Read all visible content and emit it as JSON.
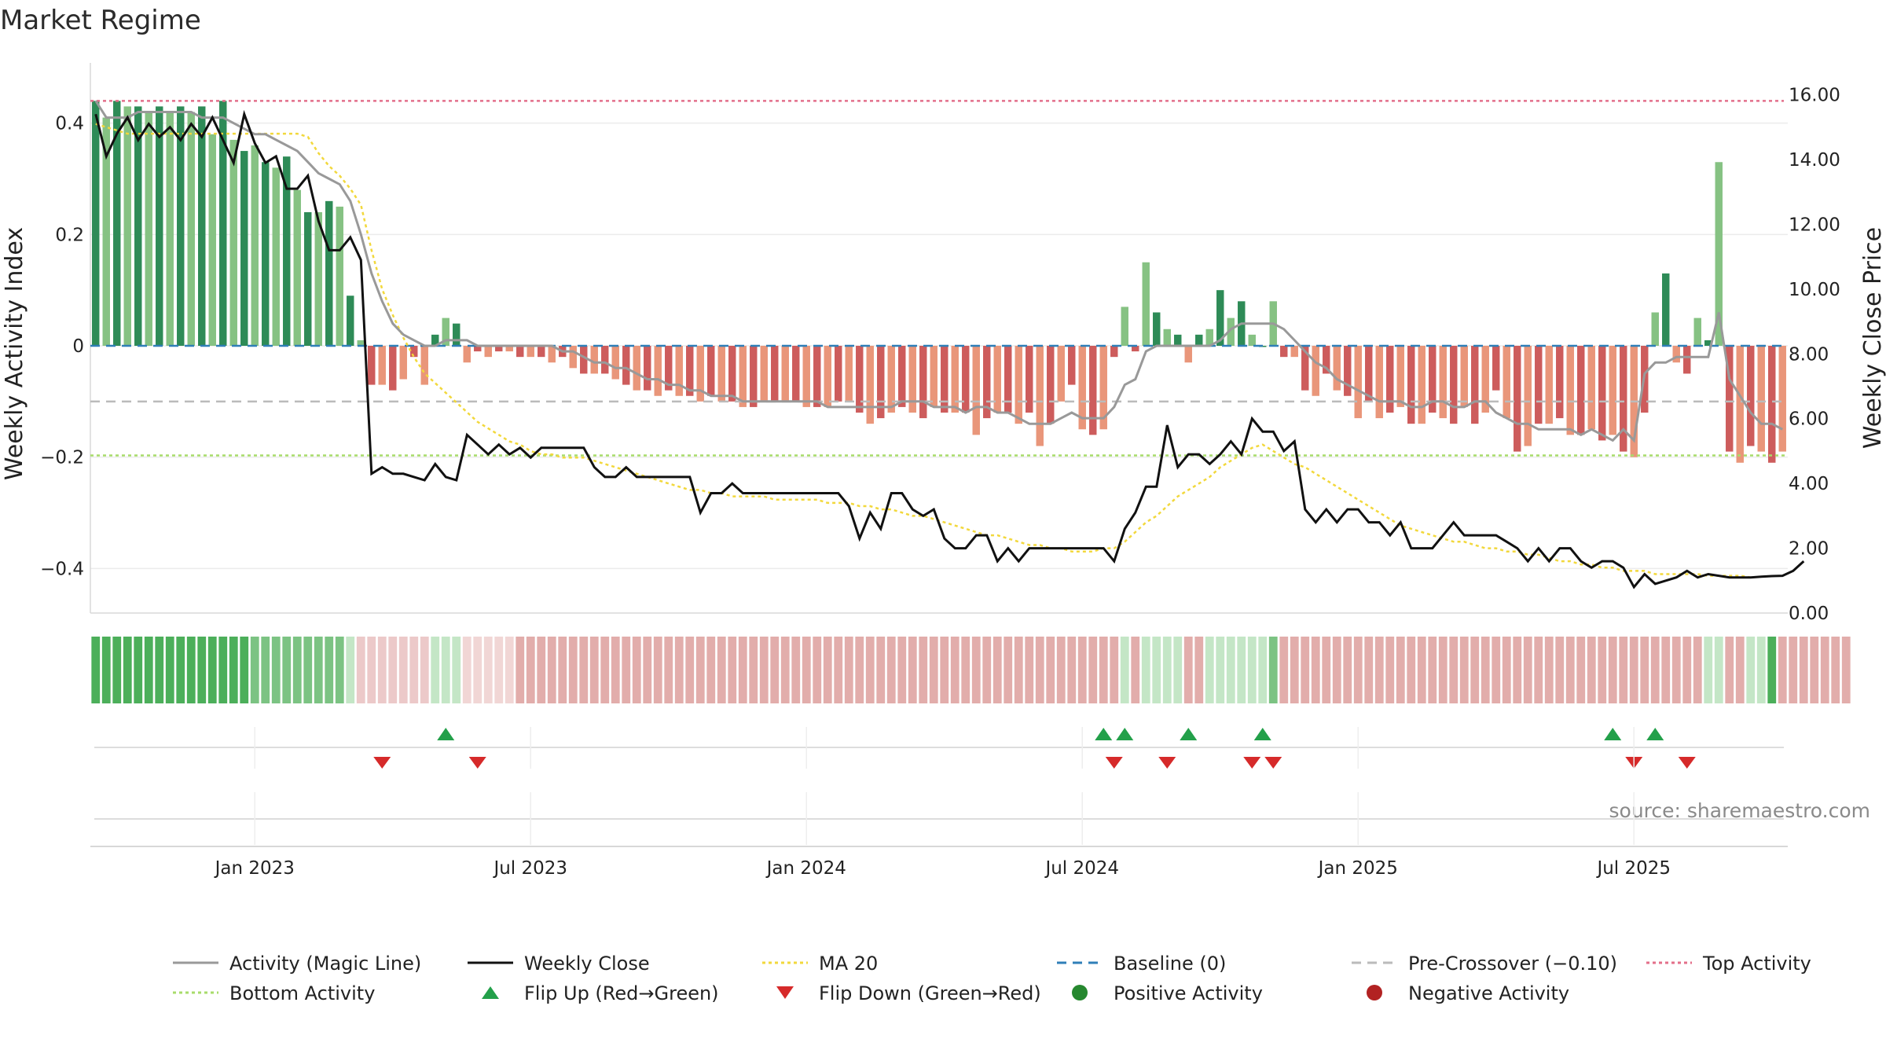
{
  "chart_data": {
    "type": "bar",
    "title": "Market Regime",
    "source": "source: sharemaestro.com",
    "left_axis": {
      "label": "Weekly Activity Index",
      "ylim": [
        -0.48,
        0.48
      ],
      "ticks": [
        -0.4,
        -0.2,
        0,
        0.2,
        0.4
      ],
      "tick_labels": [
        "−0.4",
        "−0.2",
        "0",
        "0.2",
        "0.4"
      ]
    },
    "right_axis": {
      "label": "Weekly Close Price",
      "ylim": [
        0,
        16.5
      ],
      "ticks": [
        0,
        2,
        4,
        6,
        8,
        10,
        12,
        14,
        16
      ],
      "tick_labels": [
        "0.00",
        "2.00",
        "4.00",
        "6.00",
        "8.00",
        "10.00",
        "12.00",
        "14.00",
        "16.00"
      ]
    },
    "x_axis": {
      "start_week": 0,
      "end_week": 156,
      "ticks": [
        {
          "label": "Jan 2023",
          "week": 15
        },
        {
          "label": "Jul 2023",
          "week": 41
        },
        {
          "label": "Jan 2024",
          "week": 67
        },
        {
          "label": "Jul 2024",
          "week": 93
        },
        {
          "label": "Jan 2025",
          "week": 119
        },
        {
          "label": "Jul 2025",
          "week": 145
        }
      ]
    },
    "reference_lines": {
      "top_activity": 0.44,
      "bottom_activity": -0.197,
      "baseline": 0,
      "pre_crossover": -0.1
    },
    "activity_bars": [
      0.44,
      0.41,
      0.44,
      0.43,
      0.43,
      0.42,
      0.43,
      0.42,
      0.43,
      0.42,
      0.43,
      0.38,
      0.44,
      0.37,
      0.35,
      0.36,
      0.33,
      0.32,
      0.34,
      0.28,
      0.24,
      0.24,
      0.26,
      0.25,
      0.09,
      0.01,
      -0.07,
      -0.07,
      -0.08,
      -0.06,
      -0.02,
      -0.07,
      0.02,
      0.05,
      0.04,
      -0.03,
      -0.01,
      -0.02,
      -0.01,
      -0.01,
      -0.02,
      -0.02,
      -0.02,
      -0.03,
      -0.02,
      -0.04,
      -0.05,
      -0.05,
      -0.05,
      -0.06,
      -0.07,
      -0.08,
      -0.08,
      -0.09,
      -0.08,
      -0.09,
      -0.09,
      -0.1,
      -0.09,
      -0.1,
      -0.1,
      -0.11,
      -0.11,
      -0.1,
      -0.1,
      -0.1,
      -0.1,
      -0.11,
      -0.11,
      -0.11,
      -0.1,
      -0.1,
      -0.12,
      -0.14,
      -0.13,
      -0.12,
      -0.11,
      -0.12,
      -0.13,
      -0.11,
      -0.12,
      -0.12,
      -0.12,
      -0.16,
      -0.13,
      -0.12,
      -0.12,
      -0.14,
      -0.12,
      -0.18,
      -0.14,
      -0.1,
      -0.07,
      -0.15,
      -0.16,
      -0.15,
      -0.02,
      0.07,
      -0.01,
      0.15,
      0.06,
      0.03,
      0.02,
      -0.03,
      0.02,
      0.03,
      0.1,
      0.05,
      0.08,
      0.02,
      0,
      0.08,
      -0.02,
      -0.02,
      -0.08,
      -0.09,
      -0.05,
      -0.08,
      -0.09,
      -0.13,
      -0.1,
      -0.13,
      -0.12,
      -0.11,
      -0.14,
      -0.14,
      -0.12,
      -0.13,
      -0.14,
      -0.11,
      -0.14,
      -0.12,
      -0.08,
      -0.13,
      -0.19,
      -0.18,
      -0.14,
      -0.14,
      -0.13,
      -0.16,
      -0.16,
      -0.15,
      -0.17,
      -0.16,
      -0.19,
      -0.2,
      -0.12,
      0.06,
      0.13,
      -0.03,
      -0.05,
      0.05,
      0.01,
      0.33,
      -0.19,
      -0.21,
      -0.18,
      -0.19,
      -0.21,
      -0.19
    ],
    "weekly_close": [
      15.4,
      14.1,
      14.8,
      15.3,
      14.6,
      15.1,
      14.7,
      15.0,
      14.6,
      15.1,
      14.7,
      15.3,
      14.6,
      13.9,
      15.4,
      14.5,
      13.9,
      14.1,
      13.1,
      13.1,
      13.5,
      12.1,
      11.2,
      11.2,
      11.6,
      10.9,
      4.3,
      4.5,
      4.3,
      4.3,
      4.2,
      4.1,
      4.6,
      4.2,
      4.1,
      5.5,
      5.2,
      4.9,
      5.2,
      4.9,
      5.1,
      4.8,
      5.1,
      5.1,
      5.1,
      5.1,
      5.1,
      4.5,
      4.2,
      4.2,
      4.5,
      4.2,
      4.2,
      4.2,
      4.2,
      4.2,
      4.2,
      3.1,
      3.7,
      3.7,
      4.0,
      3.7,
      3.7,
      3.7,
      3.7,
      3.7,
      3.7,
      3.7,
      3.7,
      3.7,
      3.7,
      3.3,
      2.3,
      3.1,
      2.6,
      3.7,
      3.7,
      3.2,
      3.0,
      3.2,
      2.3,
      2.0,
      2.0,
      2.4,
      2.4,
      1.6,
      2.0,
      1.6,
      2.0,
      2.0,
      2.0,
      2.0,
      2.0,
      2.0,
      2.0,
      2.0,
      1.6,
      2.6,
      3.1,
      3.9,
      3.9,
      5.8,
      4.5,
      4.9,
      4.9,
      4.6,
      4.9,
      5.3,
      4.9,
      6.0,
      5.6,
      5.6,
      5.0,
      5.3,
      3.2,
      2.8,
      3.2,
      2.8,
      3.2,
      3.2,
      2.8,
      2.8,
      2.4,
      2.8,
      2.0,
      2.0,
      2.0,
      2.4,
      2.8,
      2.4,
      2.4,
      2.4,
      2.4,
      2.2,
      2.0,
      1.6,
      2.0,
      1.6,
      2.0,
      2.0,
      1.6,
      1.4,
      1.6,
      1.6,
      1.4,
      0.8,
      1.2,
      0.9,
      1.0,
      1.1,
      1.3,
      1.1,
      1.2,
      1.15,
      1.1,
      1.1,
      1.1,
      1.12,
      1.14,
      1.15,
      1.3,
      1.6
    ],
    "ma20": [
      15.1,
      15.0,
      14.9,
      14.8,
      14.8,
      14.8,
      14.8,
      14.8,
      14.8,
      14.8,
      14.8,
      14.8,
      14.8,
      14.8,
      14.8,
      14.8,
      14.8,
      14.8,
      14.8,
      14.8,
      14.7,
      14.2,
      13.8,
      13.5,
      13.1,
      12.6,
      11.2,
      10.0,
      9.2,
      8.5,
      7.9,
      7.4,
      7.1,
      6.8,
      6.5,
      6.2,
      5.9,
      5.7,
      5.5,
      5.3,
      5.2,
      5.0,
      4.9,
      4.9,
      4.8,
      4.8,
      4.8,
      4.7,
      4.6,
      4.5,
      4.4,
      4.3,
      4.2,
      4.1,
      4.0,
      3.9,
      3.8,
      3.8,
      3.7,
      3.7,
      3.6,
      3.6,
      3.6,
      3.6,
      3.5,
      3.5,
      3.5,
      3.5,
      3.5,
      3.4,
      3.4,
      3.4,
      3.3,
      3.3,
      3.2,
      3.2,
      3.1,
      3.0,
      3.0,
      2.9,
      2.8,
      2.7,
      2.6,
      2.5,
      2.4,
      2.4,
      2.3,
      2.2,
      2.1,
      2.1,
      2.0,
      2.0,
      1.9,
      1.9,
      1.9,
      2.0,
      2.0,
      2.2,
      2.5,
      2.8,
      3.0,
      3.3,
      3.6,
      3.8,
      4.0,
      4.2,
      4.5,
      4.7,
      4.9,
      5.1,
      5.2,
      5.0,
      4.8,
      4.6,
      4.5,
      4.3,
      4.1,
      3.9,
      3.7,
      3.5,
      3.3,
      3.1,
      2.9,
      2.7,
      2.6,
      2.5,
      2.4,
      2.3,
      2.2,
      2.2,
      2.1,
      2.0,
      2.0,
      1.9,
      1.9,
      1.8,
      1.8,
      1.7,
      1.6,
      1.6,
      1.5,
      1.5,
      1.4,
      1.4,
      1.3,
      1.3,
      1.3,
      1.2,
      1.2,
      1.2,
      1.2,
      1.2,
      1.15,
      1.15,
      1.15,
      1.15,
      1.1
    ],
    "magic_line": [
      0.44,
      0.41,
      0.41,
      0.41,
      0.42,
      0.42,
      0.42,
      0.42,
      0.42,
      0.42,
      0.41,
      0.41,
      0.41,
      0.4,
      0.39,
      0.38,
      0.38,
      0.37,
      0.36,
      0.35,
      0.33,
      0.31,
      0.3,
      0.29,
      0.26,
      0.2,
      0.13,
      0.08,
      0.04,
      0.02,
      0.01,
      0,
      0,
      0.01,
      0.01,
      0.01,
      0,
      0,
      0,
      0,
      0,
      0,
      0,
      0,
      -0.01,
      -0.01,
      -0.02,
      -0.03,
      -0.03,
      -0.04,
      -0.04,
      -0.05,
      -0.06,
      -0.06,
      -0.07,
      -0.07,
      -0.08,
      -0.08,
      -0.09,
      -0.09,
      -0.09,
      -0.1,
      -0.1,
      -0.1,
      -0.1,
      -0.1,
      -0.1,
      -0.1,
      -0.1,
      -0.11,
      -0.11,
      -0.11,
      -0.11,
      -0.11,
      -0.11,
      -0.11,
      -0.1,
      -0.1,
      -0.1,
      -0.11,
      -0.11,
      -0.11,
      -0.12,
      -0.11,
      -0.11,
      -0.12,
      -0.12,
      -0.13,
      -0.14,
      -0.14,
      -0.14,
      -0.13,
      -0.12,
      -0.13,
      -0.13,
      -0.13,
      -0.11,
      -0.07,
      -0.06,
      -0.01,
      0,
      0,
      0,
      0,
      0,
      0,
      0.01,
      0.03,
      0.04,
      0.04,
      0.04,
      0.04,
      0.03,
      0.01,
      -0.01,
      -0.03,
      -0.04,
      -0.06,
      -0.07,
      -0.08,
      -0.09,
      -0.1,
      -0.1,
      -0.1,
      -0.11,
      -0.11,
      -0.1,
      -0.1,
      -0.11,
      -0.11,
      -0.1,
      -0.1,
      -0.12,
      -0.13,
      -0.14,
      -0.14,
      -0.15,
      -0.15,
      -0.15,
      -0.15,
      -0.16,
      -0.15,
      -0.16,
      -0.17,
      -0.15,
      -0.17,
      -0.05,
      -0.03,
      -0.03,
      -0.02,
      -0.02,
      -0.02,
      -0.02,
      0.06,
      -0.06,
      -0.09,
      -0.12,
      -0.14,
      -0.14,
      -0.15
    ],
    "regime_strip": [
      3,
      3,
      3,
      3,
      3,
      3,
      3,
      3,
      3,
      3,
      3,
      3,
      3,
      3,
      3,
      2,
      2,
      2,
      2,
      2,
      2,
      2,
      2,
      2,
      1,
      -1,
      -1,
      -1,
      -1,
      -1,
      -1,
      -1,
      1,
      1,
      1,
      -2,
      -2,
      -2,
      -2,
      -2,
      -2,
      -2,
      -2,
      -2,
      -2,
      -2,
      -2,
      -2,
      -2,
      -2,
      -2,
      -2,
      -2,
      -2,
      -2,
      -2,
      -2,
      -2,
      -2,
      -2,
      -2,
      -2,
      -2,
      -2,
      -2,
      -2,
      -2,
      -2,
      -2,
      -2,
      -2,
      -2,
      -2,
      -2,
      -2,
      -2,
      -2,
      -2,
      -2,
      -2,
      -2,
      -2,
      -2,
      -2,
      -2,
      -2,
      -2,
      -2,
      -2,
      -2,
      -2,
      -2,
      -2,
      -2,
      -2,
      -2,
      -2,
      1,
      -2,
      1,
      1,
      1,
      1,
      -2,
      -2,
      1,
      1,
      1,
      1,
      1,
      1,
      2,
      -2,
      -2,
      -2,
      -2,
      -2,
      -2,
      -2,
      -2,
      -2,
      -2,
      -2,
      -2,
      -2,
      -2,
      -2,
      -2,
      -2,
      -2,
      -2,
      -2,
      -2,
      -2,
      -2,
      -2,
      -2,
      -2,
      -2,
      -2,
      -2,
      -2,
      -2,
      -2,
      -2,
      -2,
      -2,
      -2,
      -2,
      -2,
      -2,
      -2,
      1,
      1,
      -2,
      -2,
      1,
      1,
      3,
      -2,
      -2,
      -2,
      -2,
      -2,
      -2,
      -2
    ],
    "flip_up_weeks": [
      33,
      95,
      97,
      103,
      110,
      143,
      147
    ],
    "flip_down_weeks": [
      27,
      36,
      96,
      101,
      109,
      111,
      145,
      150
    ]
  },
  "legend": [
    {
      "label": "Activity (Magic Line)",
      "kind": "line",
      "color": "#999999",
      "dash": ""
    },
    {
      "label": "Weekly Close",
      "kind": "line",
      "color": "#111111",
      "dash": ""
    },
    {
      "label": "MA 20",
      "kind": "line",
      "color": "#f2d83c",
      "dash": "4,4"
    },
    {
      "label": "Baseline (0)",
      "kind": "line",
      "color": "#2f7fb8",
      "dash": "12,8"
    },
    {
      "label": "Pre-Crossover (−0.10)",
      "kind": "line",
      "color": "#bbbbbb",
      "dash": "12,8"
    },
    {
      "label": "Top Activity",
      "kind": "line",
      "color": "#e36f8a",
      "dash": "4,4"
    },
    {
      "label": "Bottom Activity",
      "kind": "line",
      "color": "#a8dc6b",
      "dash": "4,4"
    },
    {
      "label": "Flip Up (Red→Green)",
      "kind": "tri-up",
      "color": "#23a04a",
      "dash": ""
    },
    {
      "label": "Flip Down (Green→Red)",
      "kind": "tri-down",
      "color": "#d62a2a",
      "dash": ""
    },
    {
      "label": "Positive Activity",
      "kind": "dot",
      "color": "#26882f",
      "dash": ""
    },
    {
      "label": "Negative Activity",
      "kind": "dot",
      "color": "#b22222",
      "dash": ""
    }
  ],
  "colors": {
    "pos_strong": "#2e8b57",
    "pos_light": "#86c283",
    "neg_strong": "#cd5c5c",
    "neg_light": "#e9967a",
    "grid": "#ececec",
    "axis": "#d8d8d8"
  }
}
